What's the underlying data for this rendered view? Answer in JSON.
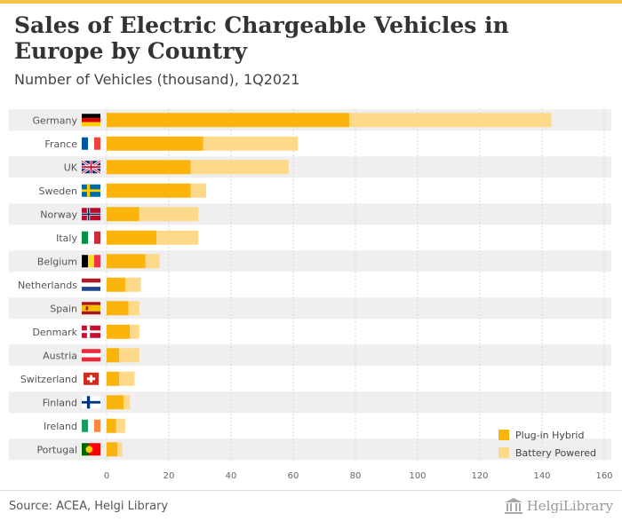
{
  "title": "Sales of Electric Chargeable Vehicles in Europe by Country",
  "subtitle": "Number of Vehicles (thousand), 1Q2021",
  "source": "Source: ACEA, Helgi Library",
  "brand": "HelgiLibrary",
  "brand_icon": "library-building-icon",
  "colors": {
    "plug_in_hybrid": "#fbb40b",
    "battery_powered": "#fdd98a",
    "row_band": "#efefef",
    "grid": "#d9d9d9",
    "text": "#555555"
  },
  "chart_data": {
    "type": "bar",
    "orientation": "horizontal",
    "stacked": true,
    "categories": [
      "Germany",
      "France",
      "UK",
      "Sweden",
      "Norway",
      "Italy",
      "Belgium",
      "Netherlands",
      "Spain",
      "Denmark",
      "Austria",
      "Switzerland",
      "Finland",
      "Ireland",
      "Portugal"
    ],
    "flags": [
      "flag-germany",
      "flag-france",
      "flag-uk",
      "flag-sweden",
      "flag-norway",
      "flag-italy",
      "flag-belgium",
      "flag-netherlands",
      "flag-spain",
      "flag-denmark",
      "flag-austria",
      "flag-switzerland",
      "flag-finland",
      "flag-ireland",
      "flag-portugal"
    ],
    "series": [
      {
        "name": "Plug-in Hybrid",
        "color": "#fbb40b",
        "values": [
          78,
          31,
          27,
          27,
          10.5,
          16,
          12.5,
          6,
          7,
          7.5,
          4,
          4,
          5.5,
          3,
          3.5
        ]
      },
      {
        "name": "Battery Powered",
        "color": "#fdd98a",
        "values": [
          65,
          30.5,
          31.5,
          5,
          19,
          13.5,
          4.5,
          5,
          3.5,
          3,
          6.5,
          5,
          2,
          3,
          1.5
        ]
      }
    ],
    "xlim": [
      0,
      160
    ],
    "xticks": [
      0,
      20,
      40,
      60,
      80,
      100,
      120,
      140,
      160
    ],
    "grid": true,
    "legend_position": "bottom-right"
  }
}
